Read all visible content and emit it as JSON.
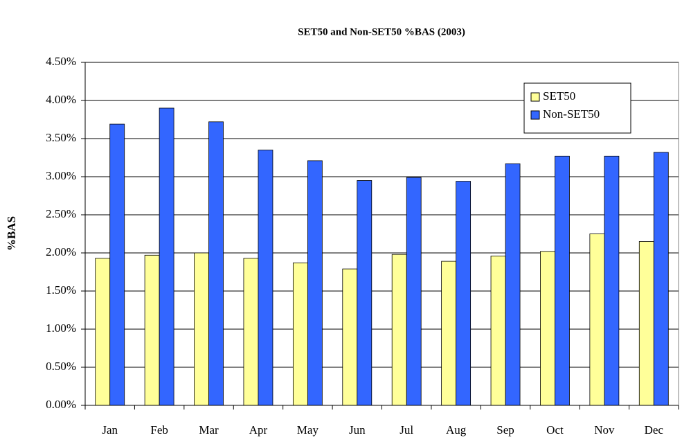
{
  "chart_data": {
    "type": "bar",
    "title": "SET50 and Non-SET50 %BAS (2003)",
    "y_label": "%BAS",
    "categories": [
      "Jan",
      "Feb",
      "Mar",
      "Apr",
      "May",
      "Jun",
      "Jul",
      "Aug",
      "Sep",
      "Oct",
      "Nov",
      "Dec"
    ],
    "series": [
      {
        "name": "SET50",
        "color": "#ffff99",
        "values": [
          1.93,
          1.97,
          2.0,
          1.93,
          1.87,
          1.79,
          1.98,
          1.89,
          1.96,
          2.02,
          2.25,
          2.15
        ]
      },
      {
        "name": "Non-SET50",
        "color": "#3366ff",
        "values": [
          3.69,
          3.9,
          3.72,
          3.35,
          3.21,
          2.95,
          2.99,
          2.94,
          3.17,
          3.27,
          3.27,
          3.32
        ]
      }
    ],
    "ylim": [
      0,
      4.5
    ],
    "yticks": [
      {
        "value": 0,
        "label": "0.00%"
      },
      {
        "value": 0.5,
        "label": "0.50%"
      },
      {
        "value": 1,
        "label": "1.00%"
      },
      {
        "value": 1.5,
        "label": "1.50%"
      },
      {
        "value": 2,
        "label": "2.00%"
      },
      {
        "value": 2.5,
        "label": "2.50%"
      },
      {
        "value": 3,
        "label": "3.00%"
      },
      {
        "value": 3.5,
        "label": "3.50%"
      },
      {
        "value": 4,
        "label": "4.00%"
      },
      {
        "value": 4.5,
        "label": "4.50%"
      }
    ],
    "grid": true,
    "legend": "upper right"
  }
}
